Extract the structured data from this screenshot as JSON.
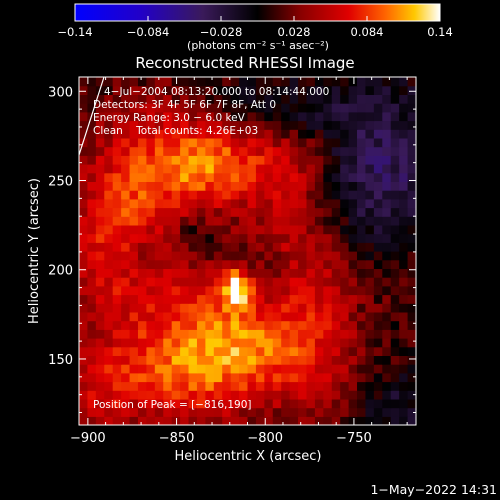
{
  "chart_data": {
    "type": "heatmap",
    "title": "Reconstructed RHESSI Image",
    "xlabel": "Heliocentric X (arcsec)",
    "ylabel": "Heliocentric Y (arcsec)",
    "xlim": [
      -905,
      -715
    ],
    "ylim": [
      113,
      308
    ],
    "x_ticks": [
      -900,
      -850,
      -800,
      -750
    ],
    "y_ticks": [
      150,
      200,
      250,
      300
    ],
    "colorbar": {
      "label": "(photons cm⁻² s⁻¹ asec⁻²)",
      "range": [
        -0.14,
        0.14
      ],
      "ticks": [
        "−0.14",
        "−0.084",
        "−0.028",
        "0.028",
        "0.084",
        "0.14"
      ]
    },
    "annotations": [
      "4−Jul−2004 08:13:20.000 to 08:14:44.000",
      "Detectors: 3F 4F 5F 6F 7F 8F, Att 0",
      "Energy Range: 3.0 − 6.0 keV",
      "Clean    Total counts: 4.26E+03"
    ],
    "peak_label": "Position of Peak = [−816,190]",
    "peak": {
      "x": -816,
      "y": 190,
      "value": 0.14
    },
    "footer_timestamp": "1−May−2022 14:31",
    "grid": false,
    "blobs": [
      {
        "x": -855,
        "y": 265,
        "sx": 30,
        "sy": 25,
        "v": 0.05
      },
      {
        "x": -880,
        "y": 230,
        "sx": 20,
        "sy": 25,
        "v": 0.045
      },
      {
        "x": -835,
        "y": 258,
        "sx": 20,
        "sy": 18,
        "v": 0.04
      },
      {
        "x": -805,
        "y": 260,
        "sx": 25,
        "sy": 15,
        "v": 0.03
      },
      {
        "x": -785,
        "y": 225,
        "sx": 18,
        "sy": 35,
        "v": 0.04
      },
      {
        "x": -885,
        "y": 195,
        "sx": 20,
        "sy": 30,
        "v": 0.035
      },
      {
        "x": -840,
        "y": 180,
        "sx": 25,
        "sy": 20,
        "v": 0.03
      },
      {
        "x": -830,
        "y": 150,
        "sx": 30,
        "sy": 25,
        "v": 0.05
      },
      {
        "x": -805,
        "y": 160,
        "sx": 25,
        "sy": 18,
        "v": 0.04
      },
      {
        "x": -860,
        "y": 140,
        "sx": 30,
        "sy": 18,
        "v": 0.04
      },
      {
        "x": -770,
        "y": 150,
        "sx": 20,
        "sy": 25,
        "v": 0.035
      },
      {
        "x": -760,
        "y": 195,
        "sx": 12,
        "sy": 20,
        "v": 0.025
      },
      {
        "x": -725,
        "y": 200,
        "sx": 12,
        "sy": 15,
        "v": 0.02
      },
      {
        "x": -895,
        "y": 130,
        "sx": 15,
        "sy": 15,
        "v": 0.03
      },
      {
        "x": -735,
        "y": 255,
        "sx": 25,
        "sy": 35,
        "v": -0.05
      },
      {
        "x": -800,
        "y": 290,
        "sx": 30,
        "sy": 12,
        "v": -0.03
      },
      {
        "x": -870,
        "y": 210,
        "sx": 8,
        "sy": 12,
        "v": -0.03
      },
      {
        "x": -840,
        "y": 220,
        "sx": 8,
        "sy": 8,
        "v": -0.025
      },
      {
        "x": -725,
        "y": 120,
        "sx": 15,
        "sy": 15,
        "v": -0.03
      },
      {
        "x": -800,
        "y": 200,
        "sx": 8,
        "sy": 15,
        "v": -0.015
      }
    ],
    "noise_amplitude": 0.016,
    "base_level": 0.012,
    "grid_size": 40
  }
}
